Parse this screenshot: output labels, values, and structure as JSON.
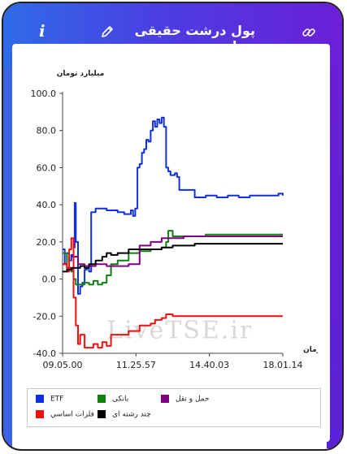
{
  "header": {
    "title": "پول درشت حقیقی صنایع",
    "info_glyph": "i",
    "icons": [
      "info-icon",
      "pencil-icon",
      "link-icon"
    ]
  },
  "colors": {
    "accent_start": "#2f6be8",
    "accent_end": "#6a1fd6"
  },
  "watermark": "LiveTSE.ir",
  "chart_data": {
    "type": "line",
    "ylabel": "میلیارد تومان",
    "xlabel": "زمان",
    "ylim": [
      -40,
      100
    ],
    "yticks": [
      "100.0",
      "80.0",
      "60.0",
      "40.0",
      "20.0",
      "0.0",
      "-20.0",
      "-40.0"
    ],
    "xticks": [
      "09.05.00",
      "11.25.57",
      "14.40.03",
      "18.01.14"
    ],
    "xlim": [
      0,
      1
    ],
    "grid": false,
    "legend_position": "bottom",
    "series": [
      {
        "name": "ETF",
        "color": "#1030e0",
        "x": [
          0.0,
          0.01,
          0.02,
          0.03,
          0.04,
          0.045,
          0.05,
          0.055,
          0.06,
          0.07,
          0.08,
          0.09,
          0.1,
          0.11,
          0.12,
          0.13,
          0.15,
          0.18,
          0.2,
          0.25,
          0.28,
          0.3,
          0.31,
          0.32,
          0.33,
          0.34,
          0.35,
          0.36,
          0.37,
          0.38,
          0.39,
          0.4,
          0.41,
          0.42,
          0.43,
          0.44,
          0.45,
          0.46,
          0.47,
          0.48,
          0.49,
          0.5,
          0.51,
          0.52,
          0.53,
          0.55,
          0.58,
          0.6,
          0.62,
          0.65,
          0.7,
          0.75,
          0.8,
          0.85,
          0.9,
          0.95,
          0.97,
          0.98,
          1.0
        ],
        "y": [
          16,
          8,
          14,
          10,
          13,
          12,
          17,
          41,
          20,
          -8,
          -4,
          -2,
          5,
          6,
          4,
          36,
          38,
          38,
          37,
          36,
          35,
          35,
          37,
          34,
          38,
          60,
          62,
          68,
          70,
          75,
          74,
          80,
          85,
          82,
          86,
          84,
          87,
          82,
          60,
          58,
          56,
          56,
          57,
          55,
          48,
          48,
          48,
          44,
          44,
          45,
          44,
          45,
          44,
          45,
          45,
          45,
          45,
          46,
          45
        ]
      },
      {
        "name": "بانکی",
        "color": "#108010",
        "x": [
          0.0,
          0.02,
          0.04,
          0.05,
          0.06,
          0.08,
          0.1,
          0.12,
          0.14,
          0.16,
          0.18,
          0.2,
          0.22,
          0.25,
          0.3,
          0.35,
          0.4,
          0.45,
          0.47,
          0.48,
          0.5,
          0.55,
          0.6,
          0.65,
          0.7,
          0.8,
          0.9,
          1.0
        ],
        "y": [
          14,
          6,
          4,
          0,
          -3,
          -3,
          -2,
          -3,
          -1,
          -3,
          -2,
          2,
          8,
          10,
          14,
          15,
          16,
          17,
          20,
          26,
          23,
          23,
          23,
          24,
          24,
          24,
          24,
          24
        ]
      },
      {
        "name": "حمل و نقل",
        "color": "#800080",
        "x": [
          0.0,
          0.02,
          0.04,
          0.05,
          0.07,
          0.1,
          0.15,
          0.2,
          0.25,
          0.3,
          0.35,
          0.4,
          0.42,
          0.45,
          0.48,
          0.5,
          0.55,
          0.6,
          0.7,
          0.8,
          0.9,
          1.0
        ],
        "y": [
          8,
          6,
          5,
          12,
          8,
          7,
          8,
          7,
          7,
          8,
          18,
          20,
          20,
          22,
          22,
          22,
          23,
          23,
          23,
          23,
          23,
          23
        ]
      },
      {
        "name": "فلزات اساسي",
        "color": "#f01010",
        "x": [
          0.0,
          0.02,
          0.03,
          0.04,
          0.05,
          0.06,
          0.07,
          0.08,
          0.1,
          0.12,
          0.14,
          0.16,
          0.18,
          0.2,
          0.22,
          0.25,
          0.3,
          0.35,
          0.4,
          0.42,
          0.45,
          0.47,
          0.5,
          0.55,
          0.6,
          0.7,
          0.8,
          0.9,
          1.0
        ],
        "y": [
          8,
          4,
          16,
          22,
          -10,
          -25,
          -35,
          -30,
          -37,
          -37,
          -35,
          -37,
          -34,
          -36,
          -30,
          -30,
          -28,
          -25,
          -24,
          -22,
          -21,
          -19,
          -20,
          -20,
          -20,
          -20,
          -20,
          -20,
          -20
        ]
      },
      {
        "name": "چند رشته ای",
        "color": "#000000",
        "x": [
          0.0,
          0.02,
          0.04,
          0.06,
          0.08,
          0.1,
          0.12,
          0.15,
          0.18,
          0.2,
          0.22,
          0.25,
          0.3,
          0.35,
          0.4,
          0.45,
          0.5,
          0.55,
          0.6,
          0.65,
          0.7,
          0.8,
          0.9,
          1.0
        ],
        "y": [
          4,
          5,
          6,
          6,
          7,
          6,
          8,
          10,
          12,
          14,
          13,
          14,
          16,
          16,
          16,
          17,
          18,
          18,
          19,
          19,
          19,
          19,
          19,
          19
        ]
      }
    ]
  }
}
